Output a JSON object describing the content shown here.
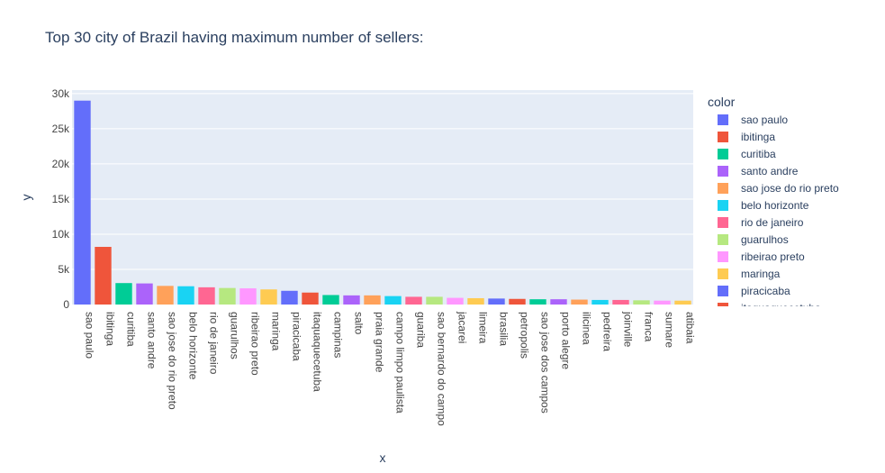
{
  "chart_data": {
    "type": "bar",
    "title": "Top 30 city of Brazil having maximum number of sellers:",
    "xlabel": "x",
    "ylabel": "y",
    "legend_title": "color",
    "legend_placement": "right",
    "ylim": [
      0,
      30500
    ],
    "yticks": [
      0,
      5000,
      10000,
      15000,
      20000,
      25000,
      30000
    ],
    "ytick_labels": [
      "0",
      "5k",
      "10k",
      "15k",
      "20k",
      "25k",
      "30k"
    ],
    "grid": true,
    "categories": [
      "sao paulo",
      "ibitinga",
      "curitiba",
      "santo andre",
      "sao jose do rio preto",
      "belo horizonte",
      "rio de janeiro",
      "guarulhos",
      "ribeirao preto",
      "maringa",
      "piracicaba",
      "itaquaquecetuba",
      "campinas",
      "salto",
      "praia grande",
      "campo limpo paulista",
      "guariba",
      "sao bernardo do campo",
      "jacarei",
      "limeira",
      "brasilia",
      "petropolis",
      "sao jose dos campos",
      "porto alegre",
      "ilicinea",
      "pedreira",
      "joinville",
      "franca",
      "sumare",
      "atibaia"
    ],
    "values": [
      29000,
      8200,
      3050,
      3000,
      2650,
      2600,
      2450,
      2350,
      2300,
      2150,
      1950,
      1700,
      1350,
      1300,
      1300,
      1200,
      1100,
      1100,
      950,
      900,
      850,
      800,
      750,
      750,
      700,
      650,
      650,
      600,
      550,
      550
    ],
    "colors": [
      "#636efa",
      "#EF553B",
      "#00cc96",
      "#ab63fa",
      "#FFA15A",
      "#19d3f3",
      "#FF6692",
      "#B6E880",
      "#FF97FF",
      "#FECB52",
      "#636efa",
      "#EF553B",
      "#00cc96",
      "#ab63fa",
      "#FFA15A",
      "#19d3f3",
      "#FF6692",
      "#B6E880",
      "#FF97FF",
      "#FECB52",
      "#636efa",
      "#EF553B",
      "#00cc96",
      "#ab63fa",
      "#FFA15A",
      "#19d3f3",
      "#FF6692",
      "#B6E880",
      "#FF97FF",
      "#FECB52"
    ],
    "legend_visible_count": 12
  }
}
